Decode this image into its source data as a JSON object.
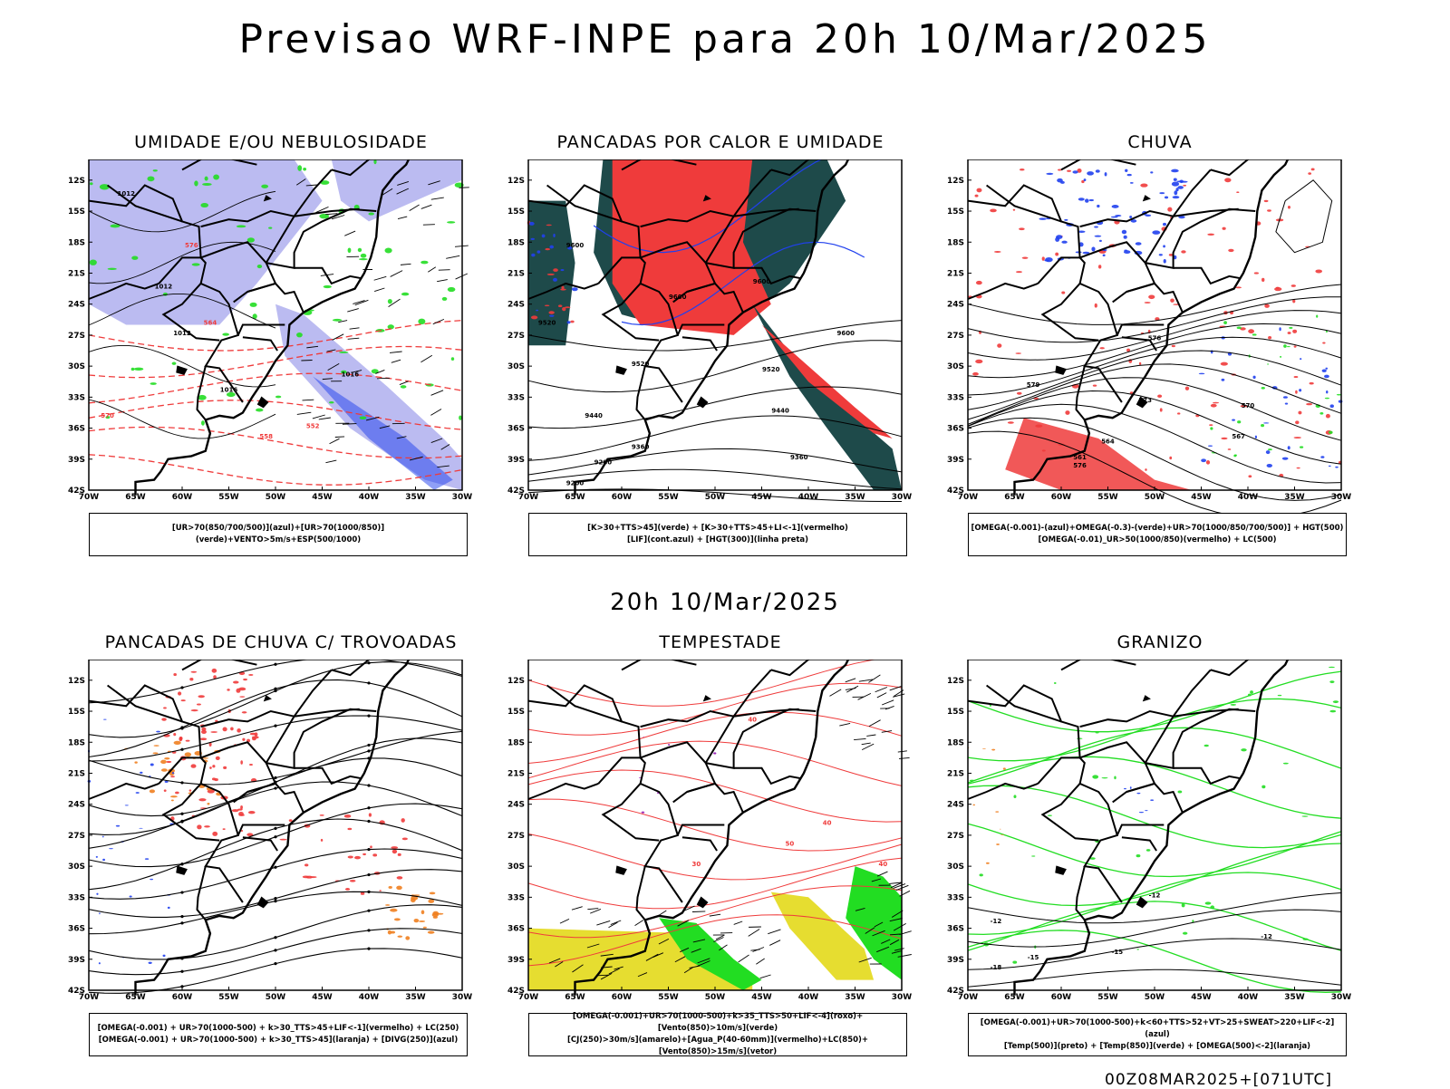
{
  "title": "Previsao WRF-INPE  para 20h 10/Mar/2025",
  "mid_title": "20h 10/Mar/2025",
  "footer": "00Z08MAR2025+[071UTC]",
  "colors": {
    "red": "#ef3b3b",
    "green": "#22dd22",
    "blue": "#2040ee",
    "lavender": "#b4b4f0",
    "darkteal": "#1e4a4a",
    "orange": "#f08020",
    "yellow": "#e6dd30",
    "purple": "#9010b0"
  },
  "lat_ticks": [
    "12S",
    "15S",
    "18S",
    "21S",
    "24S",
    "27S",
    "30S",
    "33S",
    "36S",
    "39S",
    "42S"
  ],
  "lon_ticks": [
    "70W",
    "65W",
    "60W",
    "55W",
    "50W",
    "45W",
    "40W",
    "35W",
    "30W"
  ],
  "panels": [
    {
      "title": "UMIDADE E/OU NEBULOSIDADE",
      "legend": [
        "[UR>70(850/700/500)](azul)+[UR>70(1000/850)](verde)+VENTO>5m/s+ESP(500/1000)"
      ],
      "contour_labels": [
        "1012",
        "1012",
        "1012",
        "1016",
        "1016",
        "570",
        "576",
        "564",
        "558",
        "552"
      ]
    },
    {
      "title": "PANCADAS POR CALOR E UMIDADE",
      "legend": [
        "[K>30+TTS>45](verde) + [K>30+TTS>45+LI<-1](vermelho)",
        "[LIF](cont.azul) + [HGT(300)](linha preta)"
      ],
      "contour_labels": [
        "9600",
        "9600",
        "9600",
        "9520",
        "9520",
        "9520",
        "9440",
        "9440",
        "9360",
        "9360",
        "9280",
        "9200",
        "9600"
      ]
    },
    {
      "title": "CHUVA",
      "legend": [
        "[OMEGA(-0.001)-(azul)+OMEGA(-0.3)-(verde)+UR>70(1000/850/700/500)] + HGT(500)",
        "[OMEGA(-0.01)_UR>50(1000/850)(vermelho) + LC(500)"
      ],
      "contour_labels": [
        "576",
        "579",
        "573",
        "570",
        "567",
        "564",
        "561",
        "576"
      ]
    },
    {
      "title": "PANCADAS DE CHUVA C/ TROVOADAS",
      "legend": [
        "[OMEGA(-0.001) + UR>70(1000-500) + k>30_TTS>45+LIF<-1](vermelho) + LC(250)",
        "[OMEGA(-0.001) + UR>70(1000-500) + k>30_TTS>45](laranja) + [DIVG(250)](azul)"
      ],
      "contour_labels": []
    },
    {
      "title": "TEMPESTADE",
      "legend": [
        "[OMEGA(-0.001)+UR>70(1000-500)+k>35_TTS>50+LIF<-4](roxo)+[Vento(850)>10m/s](verde)",
        "[CJ(250)>30m/s](amarelo)+[Agua_P(40-60mm)](vermelho)+LC(850)+[Vento(850)>15m/s](vetor)"
      ],
      "contour_labels": [
        "40",
        "40",
        "40",
        "50",
        "30"
      ]
    },
    {
      "title": "GRANIZO",
      "legend": [
        "[OMEGA(-0.001)+UR>70(1000-500)+k<60+TTS>52+VT>25+SWEAT>220+LIF<-2](azul)",
        "[Temp(500)](preto) + [Temp(850)](verde) + [OMEGA(500)<-2](laranja)"
      ],
      "contour_labels": [
        "-12",
        "-12",
        "-12",
        "-15",
        "-15",
        "-18"
      ]
    }
  ]
}
